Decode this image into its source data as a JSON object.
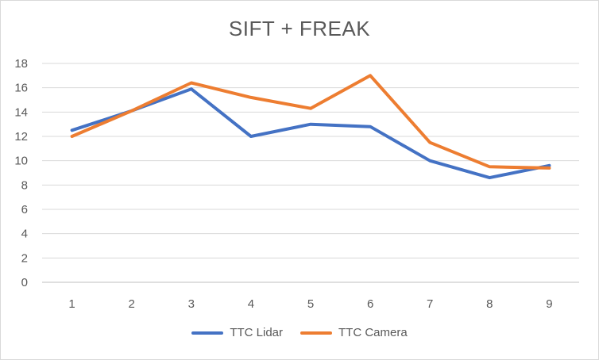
{
  "chart_data": {
    "type": "line",
    "title": "SIFT + FREAK",
    "xlabel": "",
    "ylabel": "",
    "categories": [
      "1",
      "2",
      "3",
      "4",
      "5",
      "6",
      "7",
      "8",
      "9"
    ],
    "ylim": [
      0,
      18
    ],
    "yticks": [
      0,
      2,
      4,
      6,
      8,
      10,
      12,
      14,
      16,
      18
    ],
    "grid": "horizontal",
    "legend_position": "bottom",
    "series": [
      {
        "name": "TTC Lidar",
        "color": "#4472c4",
        "values": [
          12.5,
          14.1,
          15.9,
          12.0,
          13.0,
          12.8,
          10.0,
          8.6,
          9.6
        ]
      },
      {
        "name": "TTC Camera",
        "color": "#ed7d31",
        "values": [
          12.0,
          14.1,
          16.4,
          15.2,
          14.3,
          17.0,
          11.5,
          9.5,
          9.4
        ]
      }
    ]
  }
}
